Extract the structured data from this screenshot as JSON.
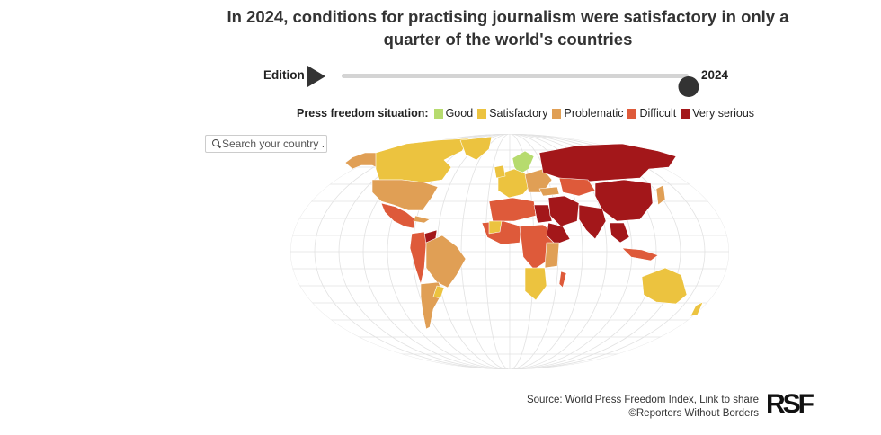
{
  "title": "In 2024, conditions for practising journalism were satisfactory in only a quarter of the world's countries",
  "edition": {
    "label": "Edition",
    "play_icon": "play-icon",
    "year": "2024",
    "slider_progress": 1.0
  },
  "legend": {
    "title": "Press freedom situation:",
    "items": [
      {
        "label": "Good",
        "color": "#b6db6e"
      },
      {
        "label": "Satisfactory",
        "color": "#ecc33f"
      },
      {
        "label": "Problematic",
        "color": "#e09f55"
      },
      {
        "label": "Difficult",
        "color": "#de5a3a"
      },
      {
        "label": "Very serious",
        "color": "#a3171a"
      }
    ]
  },
  "search": {
    "icon": "search-icon",
    "placeholder": "Search your country ..."
  },
  "footer": {
    "source_label": "Source:",
    "index_link": "World Press Freedom Index",
    "separator": ",",
    "share_link": "Link to share",
    "copyright": "©Reporters Without Borders"
  },
  "logo": {
    "text": "RSF"
  }
}
